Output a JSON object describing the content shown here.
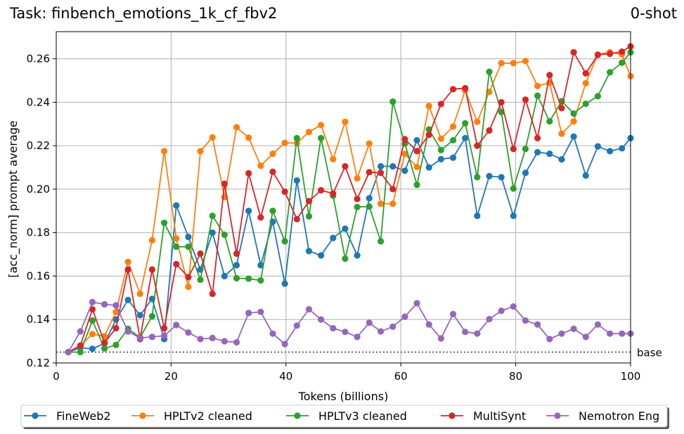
{
  "title_left": "Task: finbench_emotions_1k_cf_fbv2",
  "title_right": "0-shot",
  "chart_data": {
    "type": "line",
    "xlabel": "Tokens (billions)",
    "ylabel": "[acc_norm] prompt average",
    "xlim": [
      0,
      100
    ],
    "ylim": [
      0.12,
      0.2725
    ],
    "xticks": [
      0,
      20,
      40,
      60,
      80,
      100
    ],
    "xtick_labels": [
      "0",
      "20",
      "40",
      "60",
      "80",
      "100"
    ],
    "yticks": [
      0.12,
      0.14,
      0.16,
      0.18,
      0.2,
      0.22,
      0.24,
      0.26
    ],
    "ytick_labels": [
      "0.12",
      "0.14",
      "0.16",
      "0.18",
      "0.20",
      "0.22",
      "0.24",
      "0.26"
    ],
    "grid": true,
    "legend_position": "bottom-center",
    "baseline": {
      "label": "base",
      "value": 0.125,
      "style": "dotted"
    },
    "x": [
      2.1,
      4.2,
      6.3,
      8.4,
      10.4,
      12.5,
      14.6,
      16.7,
      18.8,
      20.9,
      23.0,
      25.1,
      27.2,
      29.3,
      31.4,
      33.5,
      35.6,
      37.7,
      39.8,
      41.9,
      44.0,
      46.1,
      48.2,
      50.3,
      52.4,
      54.5,
      56.5,
      58.6,
      60.7,
      62.8,
      64.9,
      67.0,
      69.1,
      71.2,
      73.3,
      75.4,
      77.5,
      79.6,
      81.7,
      83.8,
      85.9,
      88.0,
      90.1,
      92.2,
      94.3,
      96.4,
      98.5,
      100.0
    ],
    "series": [
      {
        "name": "FineWeb2",
        "color": "#1f77b4",
        "values": [
          0.125,
          0.127,
          0.1265,
          0.129,
          0.14,
          0.149,
          0.142,
          0.1495,
          0.131,
          0.1925,
          0.178,
          0.163,
          0.18,
          0.16,
          0.165,
          0.19,
          0.165,
          0.185,
          0.1565,
          0.204,
          0.1715,
          0.1695,
          0.1775,
          0.1818,
          0.1695,
          0.1958,
          0.2105,
          0.2105,
          0.2085,
          0.2225,
          0.21,
          0.2138,
          0.2145,
          0.2235,
          0.1877,
          0.206,
          0.2055,
          0.1877,
          0.2075,
          0.217,
          0.2163,
          0.2137,
          0.2242,
          0.2063,
          0.2197,
          0.2175,
          0.2188,
          0.2235
        ]
      },
      {
        "name": "HPLTv2 cleaned",
        "color": "#ff7f0e",
        "values": [
          0.125,
          0.128,
          0.1333,
          0.1323,
          0.1435,
          0.1665,
          0.1518,
          0.1765,
          0.2175,
          0.1773,
          0.155,
          0.2175,
          0.2238,
          0.1963,
          0.2285,
          0.2237,
          0.2108,
          0.2163,
          0.2213,
          0.2212,
          0.2263,
          0.2295,
          0.2138,
          0.231,
          0.205,
          0.221,
          0.1933,
          0.1933,
          0.2162,
          0.2102,
          0.2383,
          0.2232,
          0.2288,
          0.2455,
          0.231,
          0.2448,
          0.258,
          0.258,
          0.259,
          0.2475,
          0.249,
          0.2255,
          0.2312,
          0.2488,
          0.262,
          0.263,
          0.262,
          0.252
        ]
      },
      {
        "name": "HPLTv3 cleaned",
        "color": "#2ca02c",
        "values": [
          0.125,
          0.125,
          0.1395,
          0.1267,
          0.1283,
          0.1357,
          0.1318,
          0.1415,
          0.1845,
          0.1735,
          0.1735,
          0.1583,
          0.1877,
          0.179,
          0.159,
          0.1588,
          0.158,
          0.19,
          0.176,
          0.2235,
          0.1875,
          0.2235,
          0.197,
          0.168,
          0.1918,
          0.192,
          0.176,
          0.2403,
          0.221,
          0.202,
          0.2275,
          0.218,
          0.2225,
          0.2303,
          0.2055,
          0.254,
          0.2355,
          0.2003,
          0.2185,
          0.243,
          0.2312,
          0.2405,
          0.2348,
          0.2393,
          0.2428,
          0.2538,
          0.2582,
          0.263
        ]
      },
      {
        "name": "MultiSynt",
        "color": "#d62728",
        "values": [
          0.125,
          0.128,
          0.1447,
          0.1293,
          0.136,
          0.163,
          0.131,
          0.163,
          0.136,
          0.1655,
          0.1595,
          0.1703,
          0.1518,
          0.2025,
          0.1703,
          0.2073,
          0.187,
          0.208,
          0.1988,
          0.1862,
          0.1945,
          0.1995,
          0.198,
          0.2105,
          0.1955,
          0.2078,
          0.2075,
          0.2,
          0.223,
          0.2175,
          0.225,
          0.2392,
          0.246,
          0.2465,
          0.22,
          0.227,
          0.24,
          0.2185,
          0.2412,
          0.2235,
          0.2525,
          0.2373,
          0.263,
          0.2533,
          0.2618,
          0.2623,
          0.2633,
          0.2657
        ]
      },
      {
        "name": "Nemotron Eng",
        "color": "#9467bd",
        "values": [
          0.125,
          0.1345,
          0.148,
          0.147,
          0.1465,
          0.1345,
          0.1315,
          0.132,
          0.1325,
          0.1375,
          0.134,
          0.131,
          0.1315,
          0.13,
          0.1295,
          0.143,
          0.1435,
          0.1335,
          0.1287,
          0.1372,
          0.1447,
          0.14,
          0.136,
          0.1343,
          0.132,
          0.1385,
          0.1345,
          0.1367,
          0.1413,
          0.1475,
          0.1377,
          0.1313,
          0.1425,
          0.1343,
          0.1335,
          0.1402,
          0.144,
          0.146,
          0.1395,
          0.1377,
          0.131,
          0.1335,
          0.1357,
          0.132,
          0.1377,
          0.1335,
          0.1335,
          0.1335
        ]
      }
    ]
  }
}
